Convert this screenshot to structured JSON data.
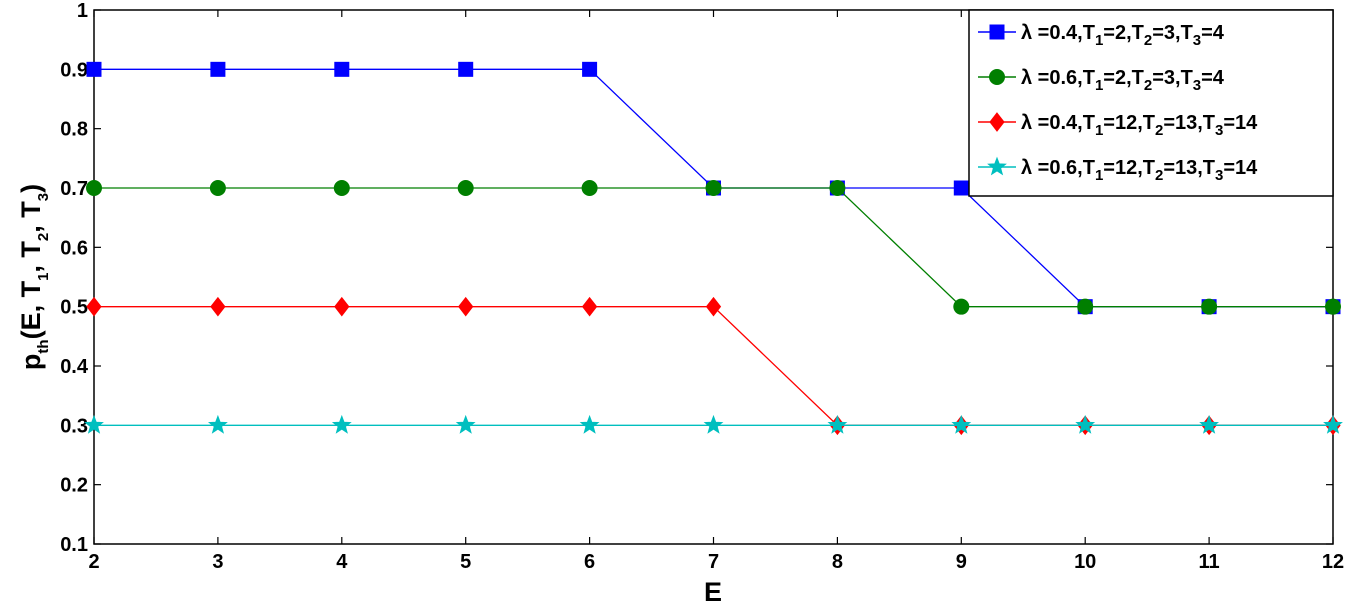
{
  "chart_data": {
    "type": "line",
    "xlabel": "E",
    "ylabel": "p_th(E, T_1, T_2, T_3)",
    "xlim": [
      2,
      12
    ],
    "ylim": [
      0.1,
      1
    ],
    "x": [
      2,
      3,
      4,
      5,
      6,
      7,
      8,
      9,
      10,
      11,
      12
    ],
    "xticks": [
      "2",
      "3",
      "4",
      "5",
      "6",
      "7",
      "8",
      "9",
      "10",
      "11",
      "12"
    ],
    "yticks": [
      "0.1",
      "0.2",
      "0.3",
      "0.4",
      "0.5",
      "0.6",
      "0.7",
      "0.8",
      "0.9",
      "1"
    ],
    "ytick_values": [
      0.1,
      0.2,
      0.3,
      0.4,
      0.5,
      0.6,
      0.7,
      0.8,
      0.9,
      1.0
    ],
    "grid": false,
    "legend_position": "top-right",
    "series": [
      {
        "name": "λ =0.4,T1=2,T2=3,T3=4",
        "legend": {
          "lambda": "λ =0.4",
          "t1": "2",
          "t2": "3",
          "t3": "4"
        },
        "color": "#0000FF",
        "marker": "square",
        "values": [
          0.9,
          0.9,
          0.9,
          0.9,
          0.9,
          0.7,
          0.7,
          0.7,
          0.5,
          0.5,
          0.5
        ]
      },
      {
        "name": "λ =0.6,T1=2,T2=3,T3=4",
        "legend": {
          "lambda": "λ =0.6",
          "t1": "2",
          "t2": "3",
          "t3": "4"
        },
        "color": "#007F00",
        "marker": "circle",
        "values": [
          0.7,
          0.7,
          0.7,
          0.7,
          0.7,
          0.7,
          0.7,
          0.5,
          0.5,
          0.5,
          0.5
        ]
      },
      {
        "name": "λ =0.4,T1=12,T2=13,T3=14",
        "legend": {
          "lambda": "λ =0.4",
          "t1": "12",
          "t2": "13",
          "t3": "14"
        },
        "color": "#FF0000",
        "marker": "diamond",
        "values": [
          0.5,
          0.5,
          0.5,
          0.5,
          0.5,
          0.5,
          0.3,
          0.3,
          0.3,
          0.3,
          0.3
        ]
      },
      {
        "name": "λ =0.6,T1=12,T2=13,T3=14",
        "legend": {
          "lambda": "λ =0.6",
          "t1": "12",
          "t2": "13",
          "t3": "14"
        },
        "color": "#00BFBF",
        "marker": "star",
        "values": [
          0.3,
          0.3,
          0.3,
          0.3,
          0.3,
          0.3,
          0.3,
          0.3,
          0.3,
          0.3,
          0.3
        ]
      }
    ]
  }
}
